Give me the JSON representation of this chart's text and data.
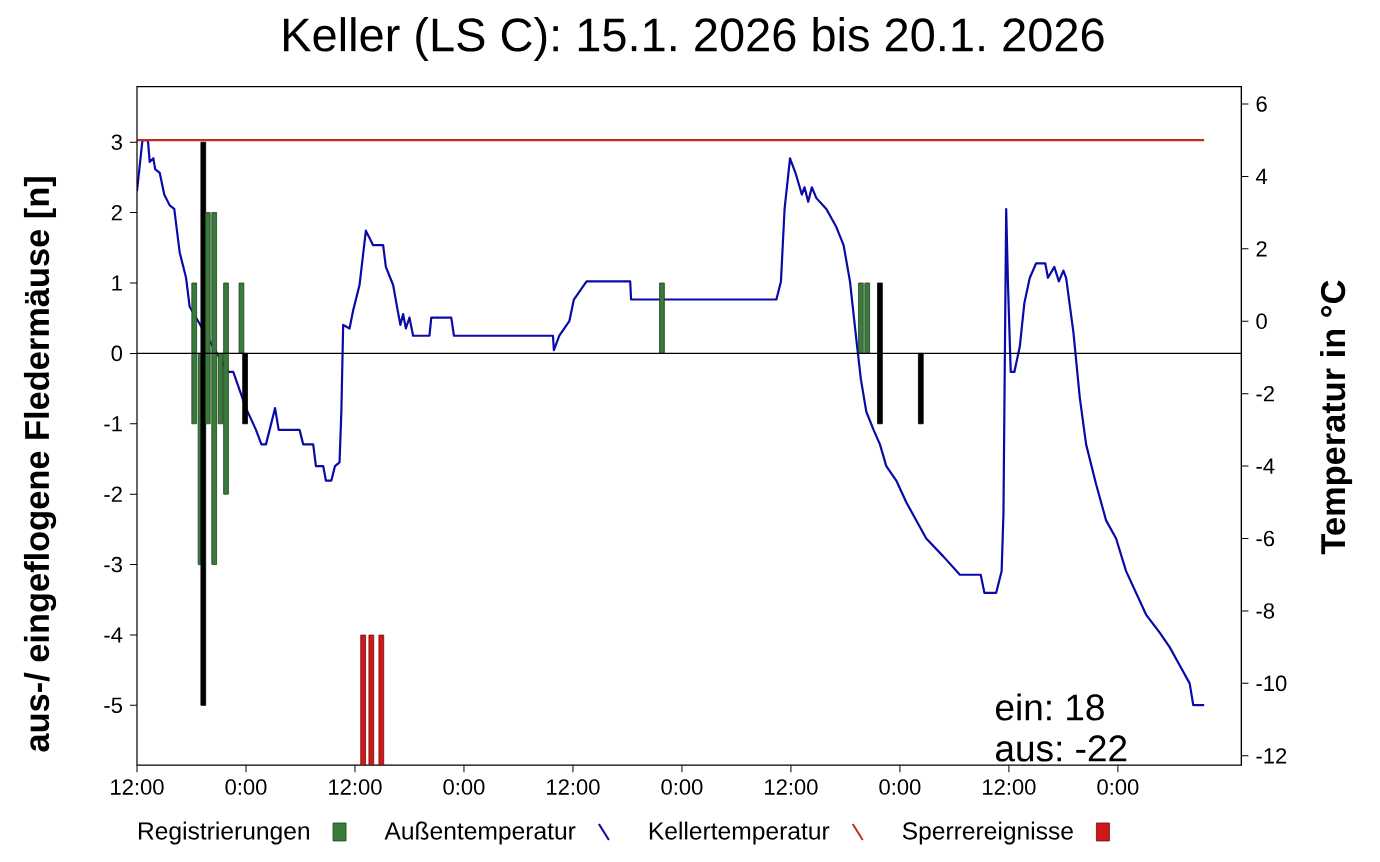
{
  "chart_data": {
    "type": "bar",
    "title": "Keller (LS C): 15.1. 2026 bis 20.1. 2026",
    "ylabel": "aus-/ eingeflogene Fledermäuse [n]",
    "y2label": "Temperatur in °C",
    "xlim": [
      "2026-01-15T12:00",
      "2026-01-20T13:36"
    ],
    "xticks": [
      {
        "value": "2026-01-15T12:00",
        "label": "12:00"
      },
      {
        "value": "2026-01-16T00:00",
        "label": "0:00"
      },
      {
        "value": "2026-01-16T12:00",
        "label": "12:00"
      },
      {
        "value": "2026-01-17T00:00",
        "label": "0:00"
      },
      {
        "value": "2026-01-17T12:00",
        "label": "12:00"
      },
      {
        "value": "2026-01-18T00:00",
        "label": "0:00"
      },
      {
        "value": "2026-01-18T12:00",
        "label": "12:00"
      },
      {
        "value": "2026-01-19T00:00",
        "label": "0:00"
      },
      {
        "value": "2026-01-19T12:00",
        "label": "12:00"
      },
      {
        "value": "2026-01-20T00:00",
        "label": "0:00"
      }
    ],
    "ylim": [
      -5.85,
      3.79
    ],
    "yticks": [
      -5,
      -4,
      -3,
      -2,
      -1,
      0,
      1,
      2,
      3
    ],
    "y2lim": [
      -12.26,
      6.48
    ],
    "y2ticks": [
      -12,
      -10,
      -8,
      -6,
      -4,
      -2,
      0,
      2,
      4,
      6
    ],
    "legend": "bottom",
    "ref_lines": [
      {
        "axis": "y",
        "value": 0,
        "color": "#000000"
      }
    ],
    "annotations": [
      "ein: 18",
      "aus: -22"
    ],
    "x": [
      "2026-01-15T18:18",
      "2026-01-15T19:00",
      "2026-01-15T19:18",
      "2026-01-15T19:48",
      "2026-01-15T20:30",
      "2026-01-15T21:12",
      "2026-01-15T21:48",
      "2026-01-15T23:30",
      "2026-01-15T23:54",
      "2026-01-17T21:48",
      "2026-01-18T19:42",
      "2026-01-18T20:24",
      "2026-01-18T21:48",
      "2026-01-19T02:18"
    ],
    "series": [
      {
        "name": "Registrierungen",
        "color": "#3a7a3a",
        "values": [
          1,
          null,
          3,
          2,
          2,
          null,
          1,
          1,
          null,
          1,
          1,
          1,
          1,
          null
        ],
        "colors": [
          "#3a7a3a",
          null,
          "#000000",
          "#3a7a3a",
          "#3a7a3a",
          null,
          "#3a7a3a",
          "#3a7a3a",
          null,
          "#3a7a3a",
          "#3a7a3a",
          "#3a7a3a",
          "#000000",
          null
        ]
      },
      {
        "values": [
          -1,
          -3,
          -5,
          -1,
          -3,
          -1,
          -2,
          null,
          -1,
          null,
          null,
          null,
          -1,
          -1
        ],
        "colors": [
          "#3a7a3a",
          "#3a7a3a",
          "#000000",
          "#3a7a3a",
          "#3a7a3a",
          "#3a7a3a",
          "#3a7a3a",
          null,
          "#000000",
          null,
          null,
          null,
          "#000000",
          "#000000"
        ]
      },
      {
        "name": "Außentemperatur",
        "type": "line",
        "axis": "y2",
        "color": "#0a0aa8",
        "x": [
          "2026-01-15T12:00",
          "2026-01-15T12:36",
          "2026-01-15T13:12",
          "2026-01-15T13:24",
          "2026-01-15T13:48",
          "2026-01-15T14:00",
          "2026-01-15T14:30",
          "2026-01-15T15:00",
          "2026-01-15T15:36",
          "2026-01-15T16:06",
          "2026-01-15T16:42",
          "2026-01-15T17:24",
          "2026-01-15T17:48",
          "2026-01-15T22:00",
          "2026-01-15T22:36",
          "2026-01-15T23:18",
          "2026-01-16T00:00",
          "2026-01-16T01:06",
          "2026-01-16T01:42",
          "2026-01-16T02:12",
          "2026-01-16T03:12",
          "2026-01-16T03:36",
          "2026-01-16T05:54",
          "2026-01-16T06:18",
          "2026-01-16T07:24",
          "2026-01-16T07:42",
          "2026-01-16T08:30",
          "2026-01-16T08:48",
          "2026-01-16T09:24",
          "2026-01-16T09:48",
          "2026-01-16T10:18",
          "2026-01-16T10:30",
          "2026-01-16T10:42",
          "2026-01-16T11:24",
          "2026-01-16T11:48",
          "2026-01-16T12:30",
          "2026-01-16T13:12",
          "2026-01-16T13:36",
          "2026-01-16T14:00",
          "2026-01-16T15:06",
          "2026-01-16T15:24",
          "2026-01-16T16:12",
          "2026-01-16T16:42",
          "2026-01-16T17:00",
          "2026-01-16T17:18",
          "2026-01-16T17:36",
          "2026-01-16T18:00",
          "2026-01-16T18:24",
          "2026-01-16T20:12",
          "2026-01-16T20:24",
          "2026-01-16T22:36",
          "2026-01-16T22:54",
          "2026-01-17T09:48",
          "2026-01-17T09:54",
          "2026-01-17T10:30",
          "2026-01-17T11:36",
          "2026-01-17T12:06",
          "2026-01-17T13:30",
          "2026-01-17T18:18",
          "2026-01-17T18:24",
          "2026-01-18T10:24",
          "2026-01-18T10:54",
          "2026-01-18T11:18",
          "2026-01-18T11:54",
          "2026-01-18T12:30",
          "2026-01-18T13:12",
          "2026-01-18T13:30",
          "2026-01-18T13:54",
          "2026-01-18T14:18",
          "2026-01-18T14:48",
          "2026-01-18T15:54",
          "2026-01-18T17:00",
          "2026-01-18T17:48",
          "2026-01-18T18:30",
          "2026-01-18T19:12",
          "2026-01-18T19:42",
          "2026-01-18T20:18",
          "2026-01-18T21:06",
          "2026-01-18T21:48",
          "2026-01-18T22:30",
          "2026-01-18T23:36",
          "2026-01-19T00:42",
          "2026-01-19T01:48",
          "2026-01-19T02:54",
          "2026-01-19T04:48",
          "2026-01-19T06:36",
          "2026-01-19T08:54",
          "2026-01-19T09:18",
          "2026-01-19T10:36",
          "2026-01-19T11:12",
          "2026-01-19T11:24",
          "2026-01-19T11:42",
          "2026-01-19T11:54",
          "2026-01-19T12:12",
          "2026-01-19T12:36",
          "2026-01-19T13:12",
          "2026-01-19T13:42",
          "2026-01-19T14:18",
          "2026-01-19T15:00",
          "2026-01-19T16:00",
          "2026-01-19T16:18",
          "2026-01-19T17:00",
          "2026-01-19T17:30",
          "2026-01-19T18:00",
          "2026-01-19T18:18",
          "2026-01-19T19:06",
          "2026-01-19T19:48",
          "2026-01-19T20:30",
          "2026-01-19T21:36",
          "2026-01-19T22:42",
          "2026-01-19T23:48",
          "2026-01-20T00:54",
          "2026-01-20T02:00",
          "2026-01-20T03:06",
          "2026-01-20T04:36",
          "2026-01-20T05:42",
          "2026-01-20T06:48",
          "2026-01-20T07:54",
          "2026-01-20T08:18",
          "2026-01-20T09:30"
        ],
        "values": [
          3.6,
          5.0,
          5.0,
          4.4,
          4.5,
          4.2,
          4.1,
          3.5,
          3.2,
          3.1,
          1.9,
          1.2,
          0.4,
          -1.4,
          -1.4,
          -1.9,
          -2.4,
          -3.0,
          -3.4,
          -3.4,
          -2.4,
          -3.0,
          -3.0,
          -3.4,
          -3.4,
          -4.0,
          -4.0,
          -4.4,
          -4.4,
          -4.0,
          -3.9,
          -2.5,
          -0.1,
          -0.2,
          0.3,
          1.0,
          2.5,
          2.3,
          2.1,
          2.1,
          1.5,
          1.0,
          0.3,
          -0.1,
          0.2,
          -0.2,
          0.1,
          -0.4,
          -0.4,
          0.1,
          0.1,
          -0.4,
          -0.4,
          -0.8,
          -0.4,
          0.0,
          0.6,
          1.1,
          1.1,
          0.6,
          0.6,
          1.1,
          3.1,
          4.5,
          4.1,
          3.5,
          3.7,
          3.3,
          3.7,
          3.4,
          3.1,
          2.6,
          2.1,
          1.1,
          -0.5,
          -1.6,
          -2.5,
          -3.0,
          -3.4,
          -4.0,
          -4.4,
          -5.0,
          -5.5,
          -6.0,
          -6.5,
          -7.0,
          -7.0,
          -7.5,
          -7.5,
          -6.9,
          -5.3,
          3.1,
          1.0,
          -1.4,
          -1.4,
          -0.7,
          0.5,
          1.2,
          1.6,
          1.6,
          1.2,
          1.5,
          1.1,
          1.4,
          1.2,
          -0.3,
          -2.1,
          -3.4,
          -4.5,
          -5.5,
          -6.0,
          -6.9,
          -7.5,
          -8.1,
          -8.6,
          -9.0,
          -9.5,
          -10.0,
          -10.6,
          -10.6
        ]
      },
      {
        "name": "Kellertemperatur",
        "type": "line",
        "axis": "y2",
        "color": "#c03020",
        "x": [
          "2026-01-15T12:00",
          "2026-01-20T09:30"
        ],
        "values": [
          5,
          5
        ]
      },
      {
        "name": "Sperrereignisse",
        "color": "#d01818",
        "x": [
          "2026-01-16T12:54",
          "2026-01-16T13:48",
          "2026-01-16T14:54"
        ],
        "base": [
          -4,
          -4,
          -4
        ],
        "values": [
          -1.85,
          -1.85,
          -1.85
        ]
      }
    ]
  }
}
